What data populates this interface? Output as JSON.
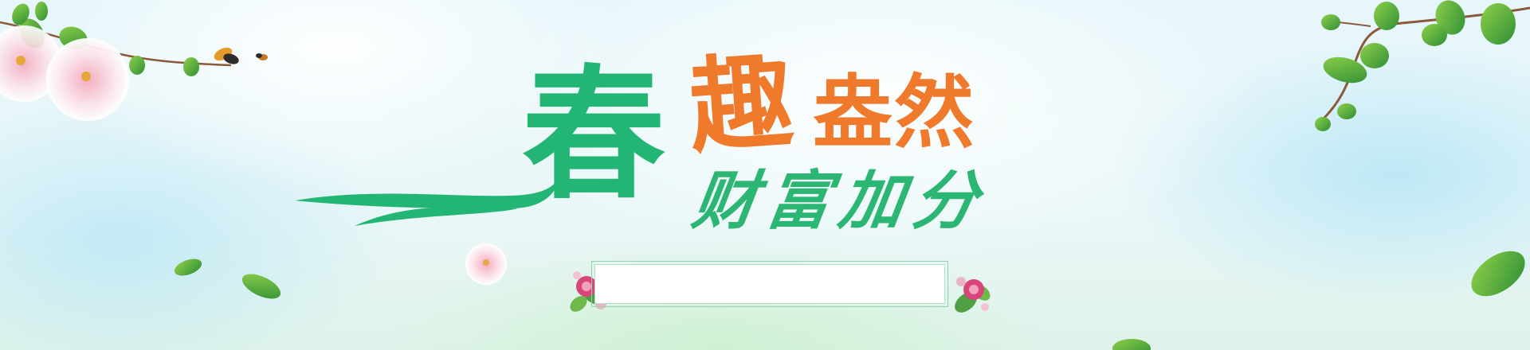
{
  "banner": {
    "headline_main": "春",
    "headline_orange_1": "趣",
    "headline_orange_2": "盎然",
    "subheadline": "财富加分",
    "input": {
      "value": "",
      "placeholder": ""
    }
  },
  "colors": {
    "green": "#22b573",
    "orange": "#f07a2c",
    "leaf_dark": "#3e9e3a",
    "leaf_light": "#7cc943",
    "blossom": "#f7d6de",
    "branch": "#8a5a3b"
  },
  "icons": [
    "branch-with-leaves-icon",
    "cherry-blossom-icon",
    "butterfly-icon",
    "falling-leaf-icon",
    "flower-bouquet-icon"
  ]
}
